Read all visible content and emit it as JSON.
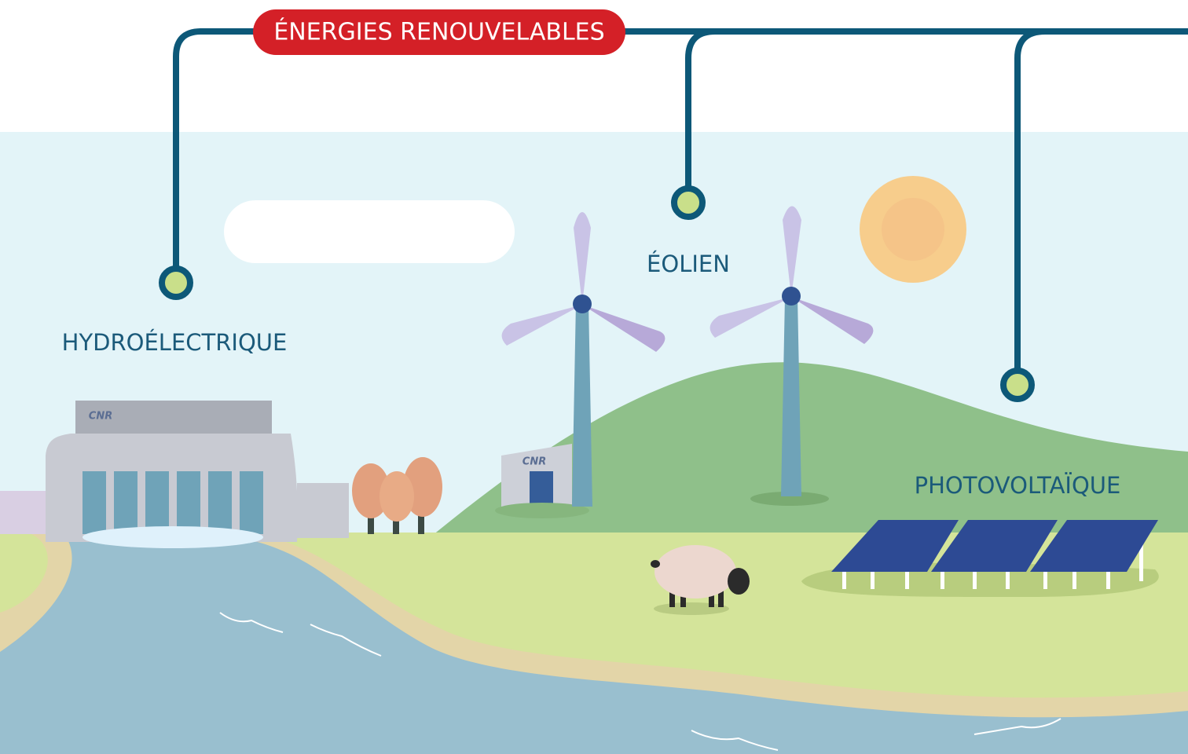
{
  "header": {
    "title": "ÉNERGIES RENOUVELABLES"
  },
  "items": [
    {
      "label": "HYDROÉLECTRIQUE"
    },
    {
      "label": "ÉOLIEN"
    },
    {
      "label": "PHOTOVOLTAÏQUE"
    }
  ],
  "brand": "CNR"
}
